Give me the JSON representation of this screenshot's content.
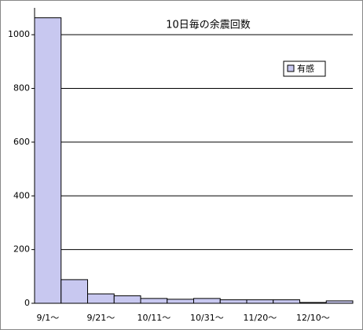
{
  "chart_data": {
    "type": "bar",
    "title": "10日毎の余震回数",
    "categories": [
      "9/1～",
      null,
      "9/21～",
      null,
      "10/11～",
      null,
      "10/31～",
      null,
      "11/20～",
      null,
      "12/10～",
      null
    ],
    "series": [
      {
        "name": "有感",
        "color": "#c8c8f0",
        "values": [
          1063,
          88,
          35,
          28,
          18,
          15,
          18,
          13,
          13,
          13,
          3,
          9
        ]
      }
    ],
    "ylim": [
      0,
      1100
    ],
    "yticks": [
      0,
      200,
      400,
      600,
      800,
      1000
    ],
    "grid": true,
    "legend": "upper right"
  }
}
